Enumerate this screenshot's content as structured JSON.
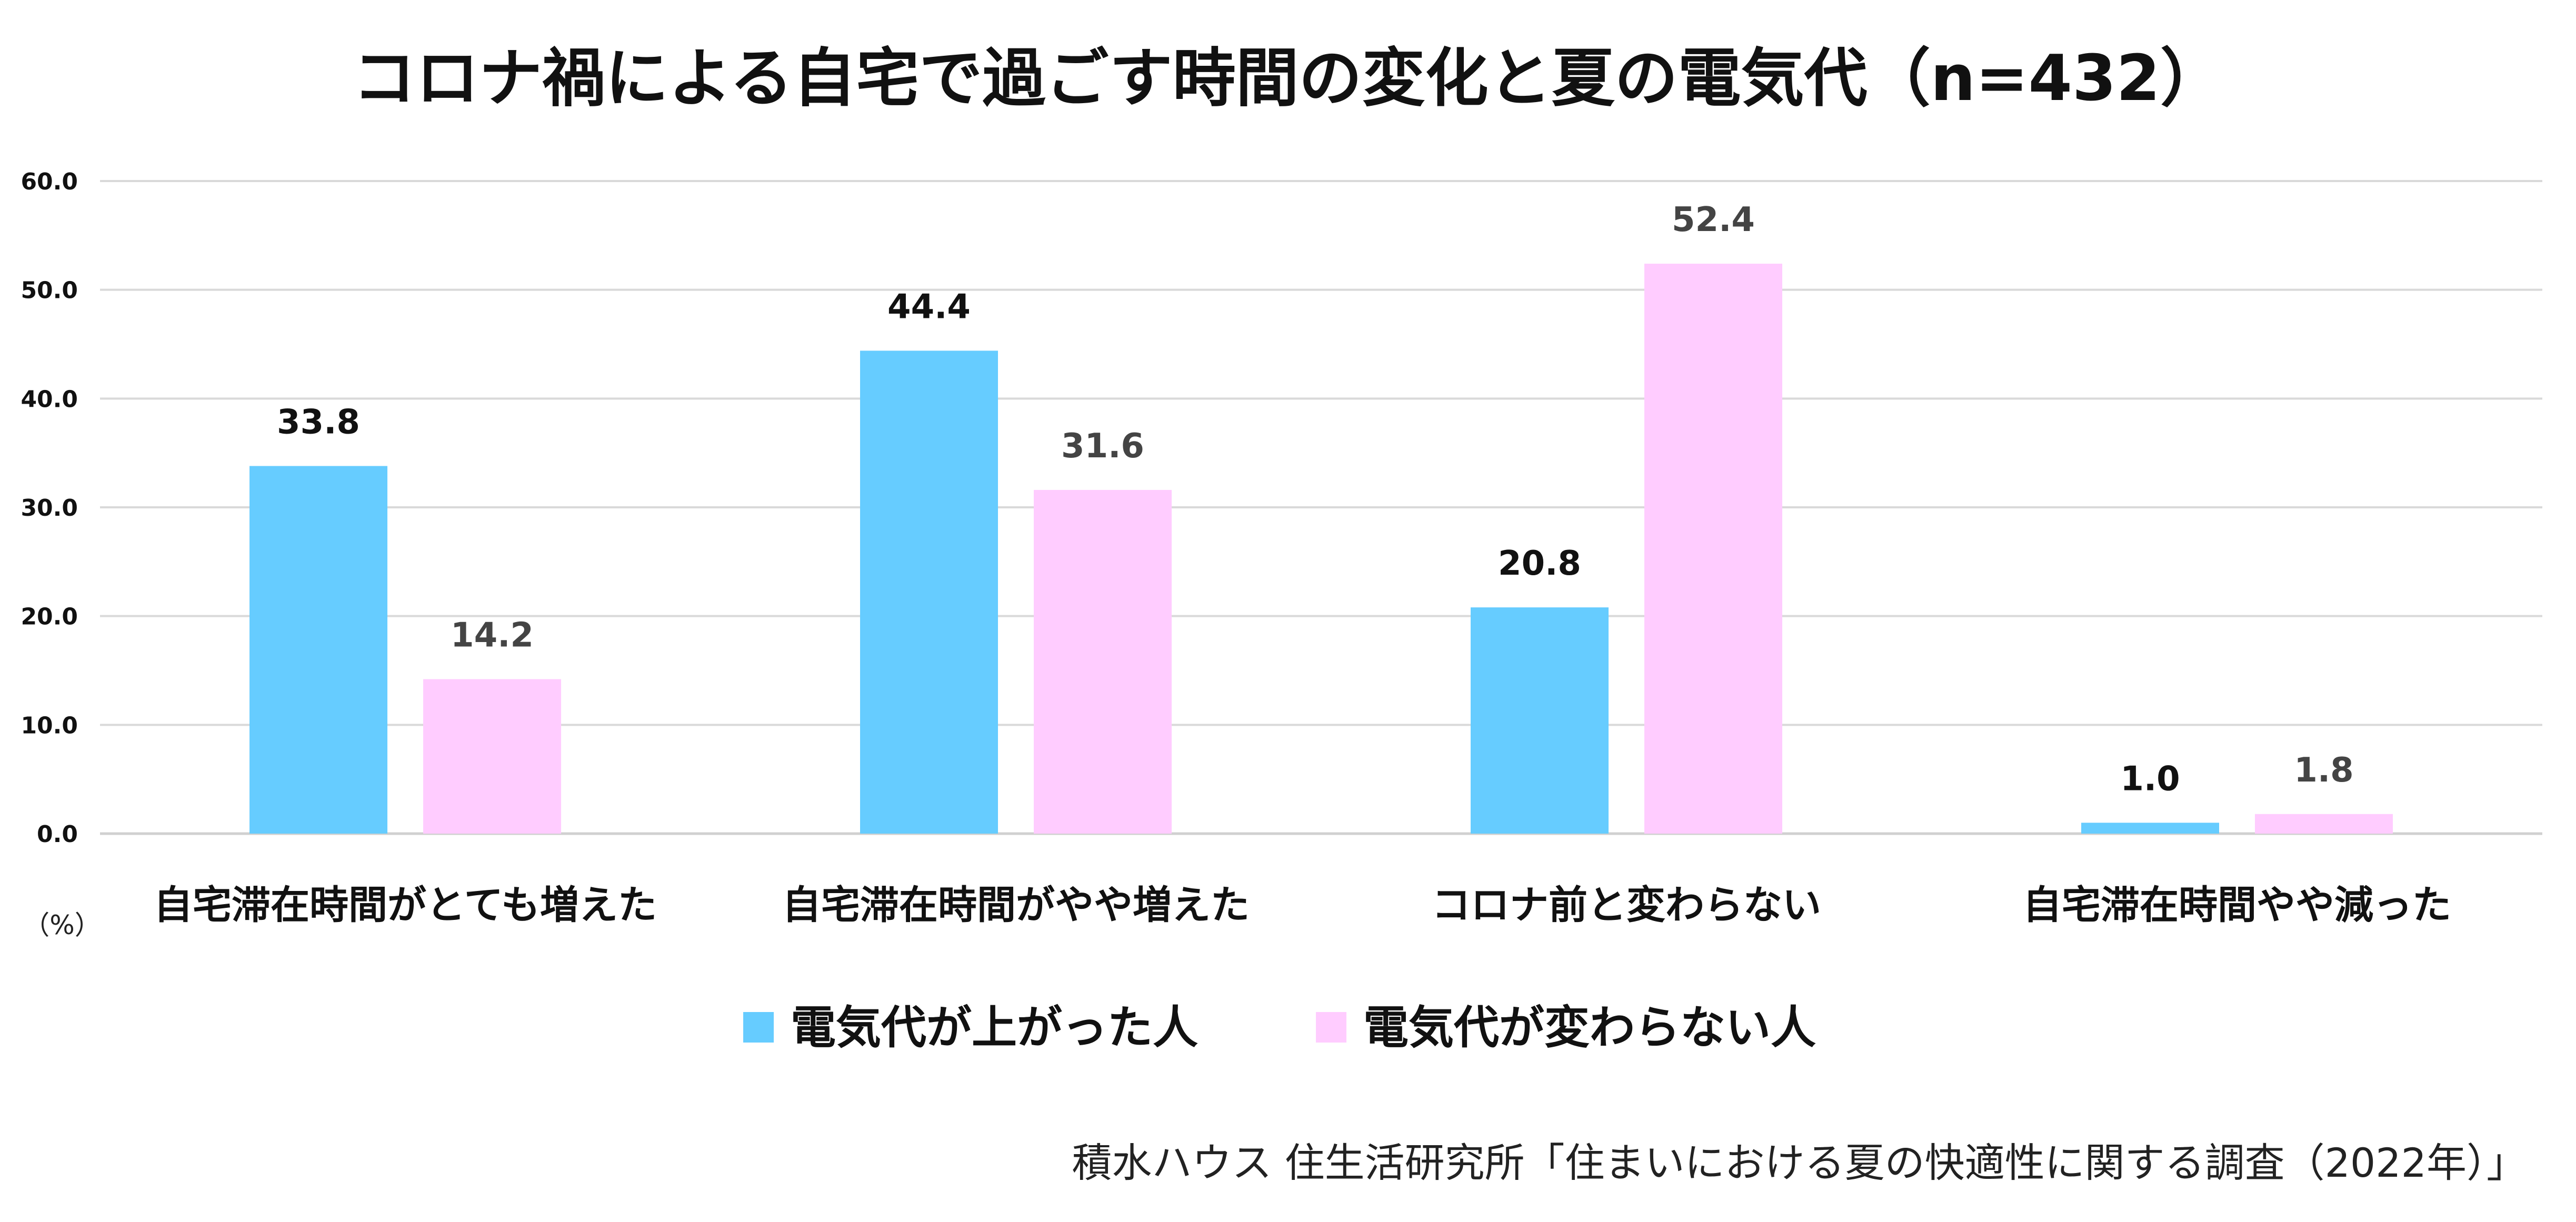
{
  "chart_data": {
    "type": "bar",
    "title": "コロナ禍による自宅で過ごす時間の変化と夏の電気代（n=432）",
    "unit_label": "（%）",
    "source": "積水ハウス 住生活研究所「住まいにおける夏の快適性に関する調査（2022年）」",
    "categories": [
      "自宅滞在時間がとても増えた",
      "自宅滞在時間がやや増えた",
      "コロナ前と変わらない",
      "自宅滞在時間やや減った"
    ],
    "series": [
      {
        "name": "電気代が上がった人",
        "color": "#66CCFF",
        "label_color": "#111111",
        "values": [
          33.8,
          44.4,
          20.8,
          1.0
        ]
      },
      {
        "name": "電気代が変わらない人",
        "color": "#FFCCFF",
        "label_color": "#444444",
        "values": [
          14.2,
          31.6,
          52.4,
          1.8
        ]
      }
    ],
    "ylim": [
      0,
      60
    ],
    "yticks": [
      "0.0",
      "10.0",
      "20.0",
      "30.0",
      "40.0",
      "50.0",
      "60.0"
    ],
    "grid": true,
    "legend_position": "bottom",
    "data_labels": [
      "33.8",
      "44.4",
      "20.8",
      "1.0",
      "14.2",
      "31.6",
      "52.4",
      "1.8"
    ]
  }
}
